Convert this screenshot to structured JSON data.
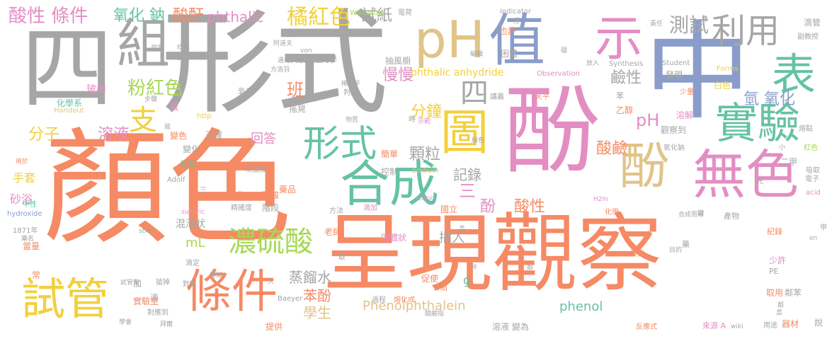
{
  "words": [
    {
      "text": "顏色",
      "color": "#f58a64"
    },
    {
      "text": "呈現觀察",
      "color": "#f58a64"
    },
    {
      "text": "酚",
      "color": "#e38ec3"
    },
    {
      "text": "形式",
      "color": "#a6a6a6"
    },
    {
      "text": "四",
      "color": "#a6a6a6"
    },
    {
      "text": "中",
      "color": "#8a9dca"
    },
    {
      "text": "值",
      "color": "#8a9dca"
    },
    {
      "text": "示",
      "color": "#e38ec3"
    },
    {
      "text": "pH",
      "color": "#e0c488"
    },
    {
      "text": "組",
      "color": "#a6a6a6"
    },
    {
      "text": "利用",
      "color": "#a6a6a6"
    },
    {
      "text": "表",
      "color": "#66c2a5"
    },
    {
      "text": "實驗",
      "color": "#66c2a5"
    },
    {
      "text": "無色",
      "color": "#e38ec3"
    },
    {
      "text": "酚",
      "color": "#e0c488"
    },
    {
      "text": "合成",
      "color": "#66c2a5"
    },
    {
      "text": "形式",
      "color": "#66c2a5"
    },
    {
      "text": "圖",
      "color": "#f2d03b"
    },
    {
      "text": "四",
      "color": "#a6a6a6"
    },
    {
      "text": "條件",
      "color": "#f58a64"
    },
    {
      "text": "試管",
      "color": "#f2d03b"
    },
    {
      "text": "濃硫酸",
      "color": "#a6d854"
    },
    {
      "text": "測試",
      "color": "#a6a6a6"
    },
    {
      "text": "橘紅色",
      "color": "#f2d03b"
    },
    {
      "text": "粉紅色",
      "color": "#a6d854"
    },
    {
      "text": "支",
      "color": "#f2d03b"
    },
    {
      "text": "酸性 條件",
      "color": "#e38ec3"
    },
    {
      "text": "氧化 鈉",
      "color": "#66c2a5"
    },
    {
      "text": "酸酐",
      "color": "#f58a64"
    },
    {
      "text": "phthalic",
      "color": "#e38ec3"
    },
    {
      "text": "試紙",
      "color": "#a6a6a6"
    },
    {
      "text": "分子",
      "color": "#f2d03b"
    },
    {
      "text": "溶液",
      "color": "#e38ec3"
    },
    {
      "text": "回答",
      "color": "#e38ec3"
    },
    {
      "text": "分鐘",
      "color": "#f2d03b"
    },
    {
      "text": "顆粒",
      "color": "#a6a6a6"
    },
    {
      "text": "記錄",
      "color": "#a6a6a6"
    },
    {
      "text": "酸鹼",
      "color": "#f58a64"
    },
    {
      "text": "鹼性",
      "color": "#a6a6a6"
    },
    {
      "text": "氫 氧化",
      "color": "#8a9dca"
    },
    {
      "text": "pH",
      "color": "#e38ec3"
    },
    {
      "text": "慢慢",
      "color": "#e38ec3"
    },
    {
      "text": "phthalic anhydride",
      "color": "#f2d03b"
    },
    {
      "text": "班",
      "color": "#f58a64"
    },
    {
      "text": "三",
      "color": "#e38ec3"
    },
    {
      "text": "酚",
      "color": "#e38ec3"
    },
    {
      "text": "酸性",
      "color": "#f58a64"
    },
    {
      "text": "蒸餾水",
      "color": "#a6a6a6"
    },
    {
      "text": "苯酚",
      "color": "#f58a64"
    },
    {
      "text": "學生",
      "color": "#e0c488"
    },
    {
      "text": "Phenolphthalein",
      "color": "#e0c488"
    },
    {
      "text": "phenol",
      "color": "#66c2a5"
    },
    {
      "text": "插入",
      "color": "#a6a6a6"
    },
    {
      "text": "g",
      "color": "#66c2a5"
    },
    {
      "text": "mL",
      "color": "#a6d854"
    },
    {
      "text": "混濁狀",
      "color": "#a6a6a6"
    },
    {
      "text": "手套",
      "color": "#f2d03b"
    },
    {
      "text": "砂浴",
      "color": "#e38ec3"
    },
    {
      "text": "化學系",
      "color": "#66c2a5"
    },
    {
      "text": "玻棒",
      "color": "#e38ec3"
    },
    {
      "text": "Handout",
      "color": "#e0c488"
    },
    {
      "text": "彰化師範大學",
      "color": "#a6a6a6"
    },
    {
      "text": "抽風櫥",
      "color": "#a6a6a6"
    },
    {
      "text": "Wikipedia",
      "color": "#a6d854"
    },
    {
      "text": "電荷",
      "color": "#a6a6a6"
    },
    {
      "text": "indicator",
      "color": "#a6a6a6"
    },
    {
      "text": "也許",
      "color": "#f58a64"
    },
    {
      "text": "困體",
      "color": "#a6a6a6"
    },
    {
      "text": "Student",
      "color": "#a6a6a6"
    },
    {
      "text": "Synthesis",
      "color": "#a6a6a6"
    },
    {
      "text": "Forms",
      "color": "#f2d03b"
    },
    {
      "text": "Observation",
      "color": "#e38ec3"
    },
    {
      "text": "發現",
      "color": "#a6a6a6"
    },
    {
      "text": "白色",
      "color": "#f2d03b"
    },
    {
      "text": "少量",
      "color": "#f58a64"
    },
    {
      "text": "滴管",
      "color": "#a6a6a6"
    },
    {
      "text": "副教授",
      "color": "#a6a6a6"
    },
    {
      "text": "熔點",
      "color": "#a6a6a6"
    },
    {
      "text": "紅色",
      "color": "#a6d854"
    },
    {
      "text": "吸取",
      "color": "#a6a6a6"
    },
    {
      "text": "電子",
      "color": "#a6a6a6"
    },
    {
      "text": "acid",
      "color": "#e38ec3"
    },
    {
      "text": "二甲",
      "color": "#a6a6a6"
    },
    {
      "text": "乙醇",
      "color": "#f58a64"
    },
    {
      "text": "溶解",
      "color": "#e38ec3"
    },
    {
      "text": "觀察到",
      "color": "#a6a6a6"
    },
    {
      "text": "氧化鈉",
      "color": "#a6a6a6"
    },
    {
      "text": "乳膠",
      "color": "#a6a6a6"
    },
    {
      "text": "搖晃",
      "color": "#a6a6a6"
    },
    {
      "text": "判定",
      "color": "#a6a6a6"
    },
    {
      "text": "簡單",
      "color": "#f58a64"
    },
    {
      "text": "藥品",
      "color": "#f58a64"
    },
    {
      "text": "控制",
      "color": "#a6a6a6"
    },
    {
      "text": "Sodium",
      "color": "#e0c488"
    },
    {
      "text": "Conc",
      "color": "#e38ec3"
    },
    {
      "text": "國立",
      "color": "#f58a64"
    },
    {
      "text": "固體狀",
      "color": "#e38ec3"
    },
    {
      "text": "操作",
      "color": "#f58a64"
    },
    {
      "text": "強酸",
      "color": "#f58a64"
    },
    {
      "text": "階段",
      "color": "#a6a6a6"
    },
    {
      "text": "精確度",
      "color": "#a6a6a6"
    },
    {
      "text": "老師",
      "color": "#f58a64"
    },
    {
      "text": "方法",
      "color": "#a6a6a6"
    },
    {
      "text": "滴加",
      "color": "#e38ec3"
    },
    {
      "text": "正確",
      "color": "#a6a6a6"
    },
    {
      "text": "變化",
      "color": "#a6a6a6"
    },
    {
      "text": "變色",
      "color": "#f58a64"
    },
    {
      "text": "催化",
      "color": "#66c2a5"
    },
    {
      "text": "Adolf",
      "color": "#a6a6a6"
    },
    {
      "text": "吹風機",
      "color": "#a6a6a6"
    },
    {
      "text": "hydroxide",
      "color": "#8a9dca"
    },
    {
      "text": "中性",
      "color": "#66c2a5"
    },
    {
      "text": "1871年",
      "color": "#a6a6a6"
    },
    {
      "text": "當量",
      "color": "#f58a64"
    },
    {
      "text": "實驗室",
      "color": "#f58a64"
    },
    {
      "text": "滴定",
      "color": "#a6a6a6"
    },
    {
      "text": "Baeyer",
      "color": "#a6a6a6"
    },
    {
      "text": "提供",
      "color": "#f58a64"
    },
    {
      "text": "溶液 變為",
      "color": "#a6a6a6"
    },
    {
      "text": "促使",
      "color": "#f58a64"
    },
    {
      "text": "介紹",
      "color": "#f58a64"
    },
    {
      "text": "熔化成",
      "color": "#f58a64"
    },
    {
      "text": "過程",
      "color": "#a6a6a6"
    },
    {
      "text": "反應式",
      "color": "#f58a64"
    },
    {
      "text": "來源 A",
      "color": "#e38ec3"
    },
    {
      "text": "用途",
      "color": "#a6a6a6"
    },
    {
      "text": "器材",
      "color": "#f58a64"
    },
    {
      "text": "說",
      "color": "#a6a6a6"
    },
    {
      "text": "鄰苯",
      "color": "#a6a6a6"
    },
    {
      "text": "取用",
      "color": "#f58a64"
    },
    {
      "text": "紀錄",
      "color": "#f58a64"
    },
    {
      "text": "產物",
      "color": "#a6a6a6"
    },
    {
      "text": "合成而得",
      "color": "#a6a6a6"
    },
    {
      "text": "化學",
      "color": "#f58a64"
    },
    {
      "text": "少許",
      "color": "#e38ec3"
    },
    {
      "text": "PE",
      "color": "#a6a6a6"
    },
    {
      "text": "資料",
      "color": "#f58a64"
    },
    {
      "text": "目的",
      "color": "#a6a6a6"
    },
    {
      "text": "天平",
      "color": "#f58a64"
    },
    {
      "text": "講義",
      "color": "#a6a6a6"
    },
    {
      "text": "sulfuric",
      "color": "#e38ec3"
    },
    {
      "text": "strip",
      "color": "#66c2a5"
    },
    {
      "text": "試管架",
      "color": "#a6a6a6"
    },
    {
      "text": "得知",
      "color": "#a6a6a6"
    },
    {
      "text": "H2In",
      "color": "#e38ec3"
    },
    {
      "text": "http",
      "color": "#f2d03b"
    },
    {
      "text": "von",
      "color": "#a6a6a6"
    },
    {
      "text": "org",
      "color": "#a6a6a6"
    },
    {
      "text": "en",
      "color": "#a6a6a6"
    },
    {
      "text": "阿道夫",
      "color": "#a6a6a6"
    },
    {
      "text": "拜爾",
      "color": "#a6a6a6"
    },
    {
      "text": "wiki",
      "color": "#a6a6a6"
    },
    {
      "text": "放入",
      "color": "#a6a6a6"
    },
    {
      "text": "加",
      "color": "#a6a6a6"
    },
    {
      "text": "常",
      "color": "#f58a64"
    },
    {
      "text": "滴",
      "color": "#a6a6a6"
    },
    {
      "text": "搶掉",
      "color": "#a6a6a6"
    },
    {
      "text": "對應到",
      "color": "#a6a6a6"
    },
    {
      "text": "學會",
      "color": "#a6a6a6"
    },
    {
      "text": "用於",
      "color": "#f58a64"
    },
    {
      "text": "藥名",
      "color": "#a6a6a6"
    },
    {
      "text": "五",
      "color": "#a6a6a6"
    },
    {
      "text": "步驟",
      "color": "#a6a6a6"
    },
    {
      "text": "戴",
      "color": "#e38ec3"
    },
    {
      "text": "粗略",
      "color": "#a6a6a6"
    },
    {
      "text": "吹熱",
      "color": "#a6a6a6"
    },
    {
      "text": "方法",
      "color": "#a6a6a6"
    },
    {
      "text": "物質",
      "color": "#a6a6a6"
    },
    {
      "text": "責任",
      "color": "#a6a6a6"
    },
    {
      "text": "為",
      "color": "#a6a6a6"
    },
    {
      "text": "序",
      "color": "#a6a6a6"
    },
    {
      "text": "盒",
      "color": "#a6a6a6"
    },
    {
      "text": "鄰",
      "color": "#a6a6a6"
    },
    {
      "text": "甲",
      "color": "#a6a6a6"
    },
    {
      "text": "三",
      "color": "#a6a6a6"
    },
    {
      "text": "小",
      "color": "#a6a6a6"
    },
    {
      "text": "玻",
      "color": "#a6a6a6"
    },
    {
      "text": "苯",
      "color": "#a6a6a6"
    },
    {
      "text": "先",
      "color": "#a6a6a6"
    },
    {
      "text": "取",
      "color": "#a6a6a6"
    },
    {
      "text": "變",
      "color": "#a6a6a6"
    },
    {
      "text": "藥",
      "color": "#a6a6a6"
    },
    {
      "text": "高",
      "color": "#a6a6a6"
    },
    {
      "text": "人",
      "color": "#a6a6a6"
    },
    {
      "text": "鄰",
      "color": "#a6a6a6"
    },
    {
      "text": "示範",
      "color": "#e38ec3"
    },
    {
      "text": "時",
      "color": "#a6a6a6"
    },
    {
      "text": "綠色",
      "color": "#a6a6a6"
    },
    {
      "text": "酸鹼指",
      "color": "#a6a6a6"
    },
    {
      "text": "杯",
      "color": "#a6a6a6"
    },
    {
      "text": "編輯",
      "color": "#a6a6a6"
    },
    {
      "text": "穩",
      "color": "#a6a6a6"
    },
    {
      "text": "稀水平",
      "color": "#a6a6a6"
    },
    {
      "text": "溶液",
      "color": "#a6a6a6"
    },
    {
      "text": "遇分",
      "color": "#a6a6a6"
    },
    {
      "text": "對應",
      "color": "#a6a6a6"
    },
    {
      "text": "方浩羽",
      "color": "#a6a6a6"
    },
    {
      "text": "吹熱",
      "color": "#a6a6a6"
    }
  ]
}
